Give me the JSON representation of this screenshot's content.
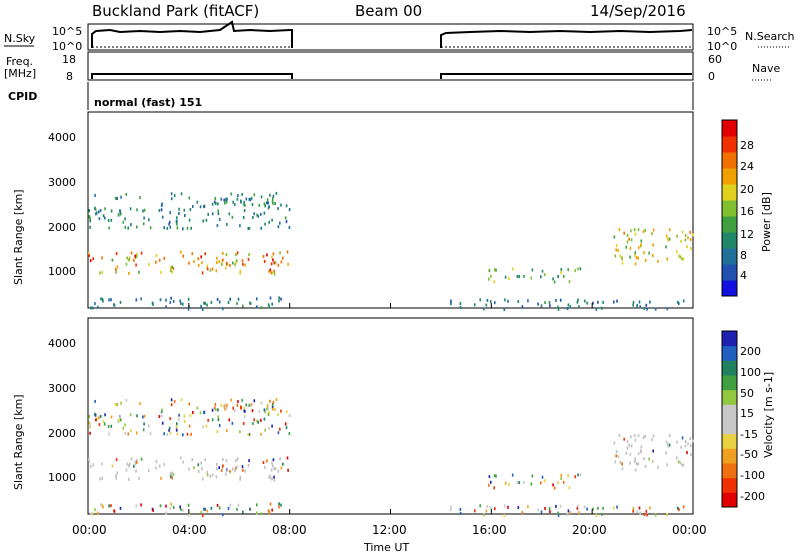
{
  "header": {
    "station": "Buckland Park (fitACF)",
    "beam": "Beam 00",
    "date": "14/Sep/2016"
  },
  "panels": {
    "nsky": {
      "label": "N.Sky",
      "ticks": [
        "10^5",
        "10^0"
      ]
    },
    "nsearch": {
      "label": "N.Search",
      "ticks": [
        "10^5",
        "10^0"
      ]
    },
    "freq": {
      "label_line1": "Freq.",
      "label_line2": "[MHz]",
      "ticks": [
        "18",
        "8"
      ]
    },
    "nave": {
      "label": "Nave",
      "ticks": [
        "60",
        "0"
      ]
    },
    "cpid": {
      "label": "CPID",
      "value": "normal (fast) 151"
    }
  },
  "axes": {
    "x_label": "Time UT",
    "x_ticks": [
      "00:00",
      "04:00",
      "08:00",
      "12:00",
      "16:00",
      "20:00",
      "00:00"
    ],
    "y_label": "Slant Range [km]",
    "y_ticks": [
      "1000",
      "2000",
      "3000",
      "4000"
    ]
  },
  "colorbars": {
    "power": {
      "label": "Power [dB]",
      "ticks": [
        "4",
        "8",
        "12",
        "16",
        "20",
        "24",
        "28"
      ],
      "colors": [
        "#1010e0",
        "#2050b0",
        "#20709a",
        "#208868",
        "#40a040",
        "#80c030",
        "#e0d020",
        "#f0a000",
        "#f07000",
        "#f03000",
        "#e00000"
      ]
    },
    "velocity": {
      "label": "Velocity [m s-1]",
      "ticks": [
        "200",
        "100",
        "50",
        "15",
        "-15",
        "-50",
        "-100",
        "-200"
      ],
      "colors": [
        "#2020b0",
        "#2060c0",
        "#208060",
        "#40a040",
        "#90c840",
        "#c8c8c8",
        "#c8c8c8",
        "#e8d040",
        "#f0a020",
        "#f07010",
        "#f03000",
        "#e00000"
      ]
    }
  },
  "colors": {
    "ground_scatter": "#c0c0c0",
    "axis": "#000000"
  },
  "chart_data": {
    "type": "heatmap",
    "x_range_hours": [
      0,
      24
    ],
    "y_range_km": [
      180,
      4600
    ],
    "data_gaps_hours": [
      [
        8,
        14
      ]
    ],
    "scatter_bands": [
      {
        "t_start": 0,
        "t_end": 8,
        "range_km": [
          980,
          1480
        ],
        "power_db": [
          14,
          30
        ],
        "ground_scatter": true
      },
      {
        "t_start": 0,
        "t_end": 8,
        "range_km": [
          2000,
          2800
        ],
        "power_db": [
          6,
          14
        ],
        "ground_scatter": false
      },
      {
        "t_start": 0,
        "t_end": 8,
        "range_km": [
          180,
          450
        ],
        "power_db": [
          4,
          12
        ],
        "ground_scatter": false
      },
      {
        "t_start": 15.8,
        "t_end": 19.5,
        "range_km": [
          800,
          1100
        ],
        "power_db": [
          10,
          18
        ],
        "ground_scatter": false
      },
      {
        "t_start": 20.8,
        "t_end": 24,
        "range_km": [
          1200,
          2000
        ],
        "power_db": [
          12,
          24
        ],
        "ground_scatter": true
      },
      {
        "t_start": 14,
        "t_end": 24,
        "range_km": [
          180,
          400
        ],
        "power_db": [
          4,
          12
        ],
        "ground_scatter": false
      }
    ]
  }
}
